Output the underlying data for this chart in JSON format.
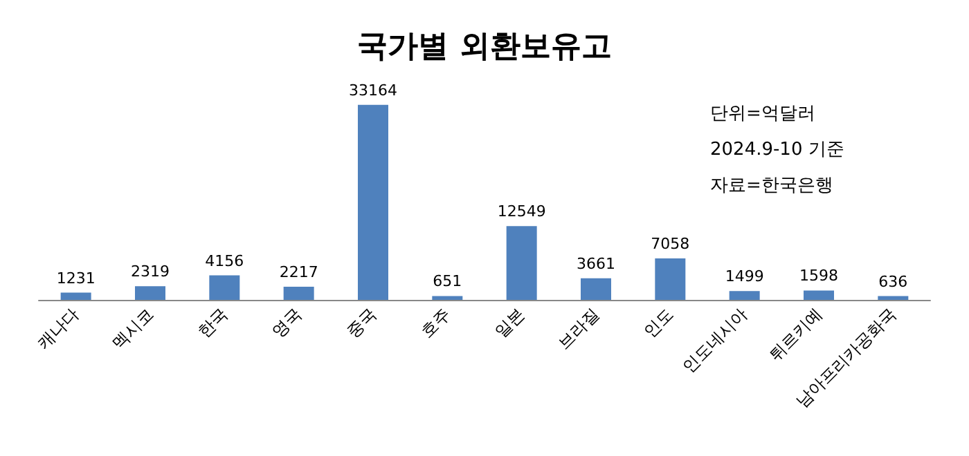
{
  "chart_data": {
    "type": "bar",
    "title": "국가별 외환보유고",
    "categories": [
      "캐나다",
      "멕시코",
      "한국",
      "영국",
      "중국",
      "호주",
      "일본",
      "브라질",
      "인도",
      "인도네시아",
      "튀르키예",
      "남아프리카공화국"
    ],
    "values": [
      1231,
      2319,
      4156,
      2217,
      33164,
      651,
      12549,
      3661,
      7058,
      1499,
      1598,
      636
    ],
    "color": "#4f81bd",
    "data_labels": true,
    "annotations": [
      "단위=억달러",
      "2024.9-10 기준",
      "자료=한국은행"
    ]
  }
}
